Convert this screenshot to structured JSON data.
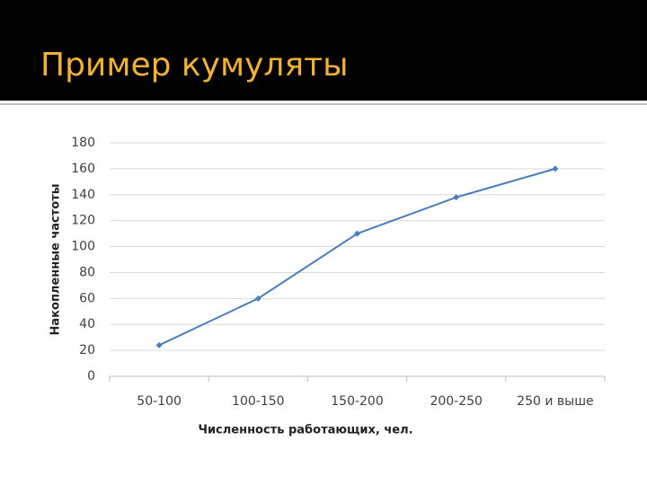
{
  "title": "Пример кумуляты",
  "chart_data": {
    "type": "line",
    "categories": [
      "50-100",
      "100-150",
      "150-200",
      "200-250",
      "250 и выше"
    ],
    "series": [
      {
        "name": "Накопленные частоты",
        "color": "#4a7ebb",
        "values": [
          24,
          60,
          110,
          138,
          160
        ]
      }
    ],
    "xlabel": "Численность работающих, чел.",
    "ylabel": "Накопленные частоты",
    "ylim": [
      0,
      180
    ],
    "yticks": [
      0,
      20,
      40,
      60,
      80,
      100,
      120,
      140,
      160,
      180
    ],
    "grid": true
  }
}
